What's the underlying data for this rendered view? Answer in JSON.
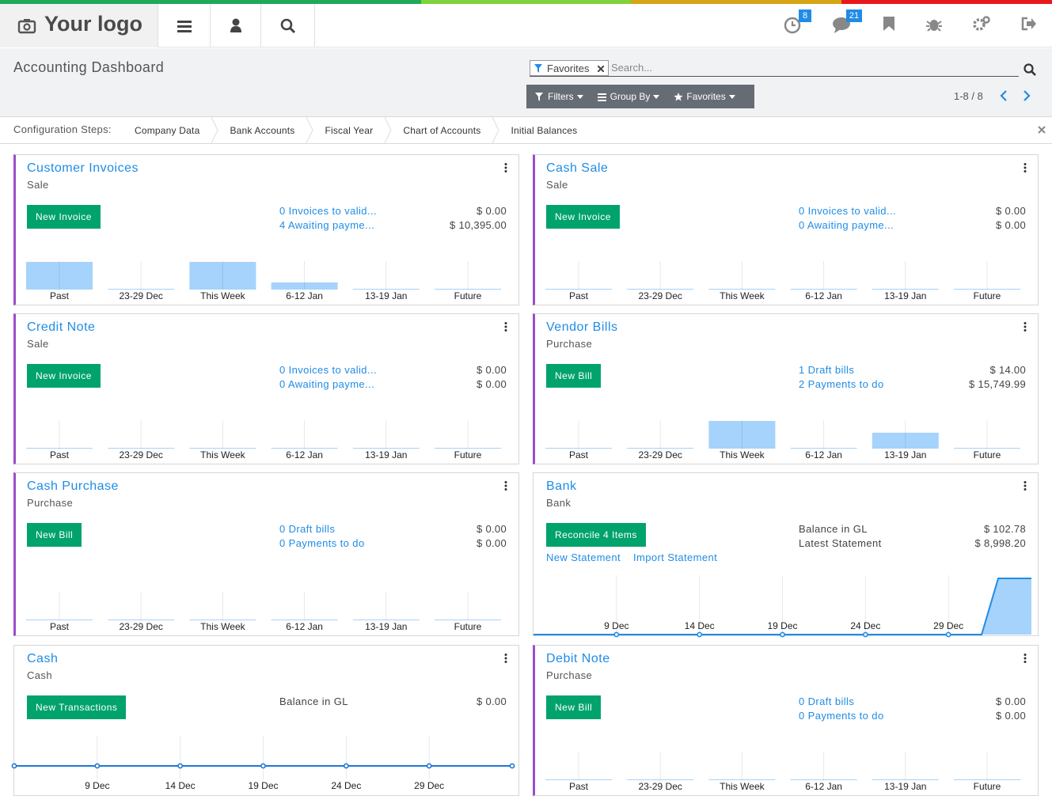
{
  "topbar": {
    "logo": "Your logo",
    "badges": [
      8,
      21
    ]
  },
  "control_panel": {
    "title": "Accounting Dashboard",
    "facet": "Favorites",
    "search_placeholder": "Search...",
    "buttons": [
      "Filters",
      "Group By",
      "Favorites"
    ],
    "pager": "1-8 / 8"
  },
  "config_steps": {
    "label": "Configuration Steps:",
    "steps": [
      "Company Data",
      "Bank Accounts",
      "Fiscal Year",
      "Chart of Accounts",
      "Initial Balances"
    ]
  },
  "cards": [
    {
      "title": "Customer Invoices",
      "subtitle": "Sale",
      "button": "New Invoice",
      "accent_color": "#9b4dca",
      "links": true,
      "rows": [
        {
          "label": "0 Invoices to valid...",
          "amount": "$ 0.00"
        },
        {
          "label": "4 Awaiting payme...",
          "amount": "$ 10,395.00"
        }
      ],
      "chart_data": {
        "type": "bar",
        "color": "#a5d3fb",
        "categories": [
          "Past",
          "23-29 Dec",
          "This Week",
          "6-12 Jan",
          "13-19 Jan",
          "Future"
        ],
        "values": [
          4600,
          0,
          4600,
          1195,
          0,
          0
        ]
      }
    },
    {
      "title": "Cash Sale",
      "subtitle": "Sale",
      "button": "New Invoice",
      "accent_color": "#9b4dca",
      "links": true,
      "rows": [
        {
          "label": "0 Invoices to valid...",
          "amount": "$ 0.00"
        },
        {
          "label": "0 Awaiting payme...",
          "amount": "$ 0.00"
        }
      ],
      "chart_data": {
        "type": "bar",
        "color": "#a5d3fb",
        "categories": [
          "Past",
          "23-29 Dec",
          "This Week",
          "6-12 Jan",
          "13-19 Jan",
          "Future"
        ],
        "values": [
          0,
          0,
          0,
          0,
          0,
          0
        ]
      }
    },
    {
      "title": "Credit Note",
      "subtitle": "Sale",
      "button": "New Invoice",
      "accent_color": "#9b4dca",
      "links": true,
      "rows": [
        {
          "label": "0 Invoices to valid...",
          "amount": "$ 0.00"
        },
        {
          "label": "0 Awaiting payme...",
          "amount": "$ 0.00"
        }
      ],
      "chart_data": {
        "type": "bar",
        "color": "#a5d3fb",
        "categories": [
          "Past",
          "23-29 Dec",
          "This Week",
          "6-12 Jan",
          "13-19 Jan",
          "Future"
        ],
        "values": [
          0,
          0,
          0,
          0,
          0,
          0
        ]
      }
    },
    {
      "title": "Vendor Bills",
      "subtitle": "Purchase",
      "button": "New Bill",
      "accent_color": "#9b4dca",
      "links": true,
      "rows": [
        {
          "label": "1 Draft bills",
          "amount": "$ 14.00"
        },
        {
          "label": "2 Payments to do",
          "amount": "$ 15,749.99"
        }
      ],
      "chart_data": {
        "type": "bar",
        "color": "#a5d3fb",
        "categories": [
          "Past",
          "23-29 Dec",
          "This Week",
          "6-12 Jan",
          "13-19 Jan",
          "Future"
        ],
        "values": [
          0,
          0,
          10000,
          0,
          5749.99,
          0
        ]
      }
    },
    {
      "title": "Cash Purchase",
      "subtitle": "Purchase",
      "button": "New Bill",
      "accent_color": "#9b4dca",
      "links": true,
      "rows": [
        {
          "label": "0 Draft bills",
          "amount": "$ 0.00"
        },
        {
          "label": "0 Payments to do",
          "amount": "$ 0.00"
        }
      ],
      "chart_data": {
        "type": "bar",
        "color": "#a5d3fb",
        "categories": [
          "Past",
          "23-29 Dec",
          "This Week",
          "6-12 Jan",
          "13-19 Jan",
          "Future"
        ],
        "values": [
          0,
          0,
          0,
          0,
          0,
          0
        ]
      }
    },
    {
      "title": "Bank",
      "subtitle": "Bank",
      "button": "Reconcile 4 Items",
      "links": false,
      "rows": [
        {
          "label": "Balance in GL",
          "amount": "$ 102.78"
        },
        {
          "label": "Latest Statement",
          "amount": "$ 8,998.20"
        }
      ],
      "actions": [
        "New Statement",
        "Import Statement"
      ],
      "chart_data": {
        "type": "line",
        "color": "#1f8ce6",
        "area": true,
        "area_color": "#a5d3fb",
        "categories": [
          null,
          null,
          null,
          null,
          null,
          "9 Dec",
          null,
          null,
          null,
          null,
          "14 Dec",
          null,
          null,
          null,
          null,
          "19 Dec",
          null,
          null,
          null,
          null,
          "24 Dec",
          null,
          null,
          null,
          null,
          "29 Dec",
          null,
          null,
          null,
          null,
          null
        ],
        "values": [
          0,
          0,
          0,
          0,
          0,
          0,
          0,
          0,
          0,
          0,
          0,
          0,
          0,
          0,
          0,
          0,
          0,
          0,
          0,
          0,
          0,
          0,
          0,
          0,
          0,
          0,
          0,
          0,
          8998.2,
          8998.2,
          8998.2
        ]
      }
    },
    {
      "title": "Cash",
      "subtitle": "Cash",
      "button": "New Transactions",
      "links": false,
      "rows": [
        {
          "label": "Balance in GL",
          "amount": "$ 0.00"
        }
      ],
      "chart_data": {
        "type": "line",
        "color": "#1f77d4",
        "area": false,
        "categories": [
          null,
          "9 Dec",
          "14 Dec",
          "19 Dec",
          "24 Dec",
          "29 Dec",
          null
        ],
        "values": [
          0,
          0,
          0,
          0,
          0,
          0,
          0
        ]
      }
    },
    {
      "title": "Debit Note",
      "subtitle": "Purchase",
      "button": "New Bill",
      "accent_color": "#9b4dca",
      "links": true,
      "rows": [
        {
          "label": "0 Draft bills",
          "amount": "$ 0.00"
        },
        {
          "label": "0 Payments to do",
          "amount": "$ 0.00"
        }
      ],
      "chart_data": {
        "type": "bar",
        "color": "#a5d3fb",
        "categories": [
          "Past",
          "23-29 Dec",
          "This Week",
          "6-12 Jan",
          "13-19 Jan",
          "Future"
        ],
        "values": [
          0,
          0,
          0,
          0,
          0,
          0
        ]
      }
    }
  ]
}
